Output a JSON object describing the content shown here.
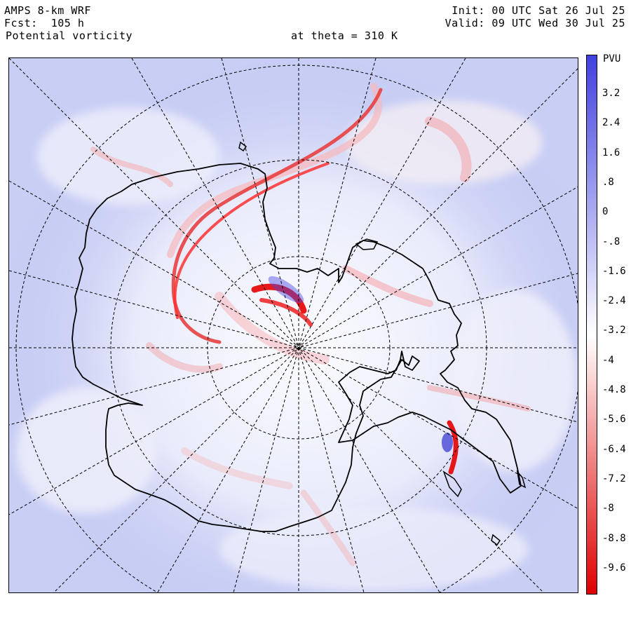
{
  "header": {
    "model": "AMPS 8-km WRF",
    "forecast": "Fcst:  105 h",
    "field": "Potential vorticity",
    "level": "at theta = 310 K",
    "init": "Init: 00 UTC Sat 26 Jul 25",
    "valid": "Valid: 09 UTC Wed 30 Jul 25"
  },
  "colorbar": {
    "unit": "PVU",
    "labels": [
      "3.2",
      "2.4",
      "1.6",
      ".8",
      "0",
      "-.8",
      "-1.6",
      "-2.4",
      "-3.2",
      "-4",
      "-4.8",
      "-5.6",
      "-6.4",
      "-7.2",
      "-8",
      "-8.8",
      "-9.6"
    ],
    "colors": {
      "positive_max": "#4040e0",
      "neutral": "#ffffff",
      "negative_max": "#e00000",
      "background_field": "#c8cdf4",
      "coastline": "#000000"
    }
  }
}
